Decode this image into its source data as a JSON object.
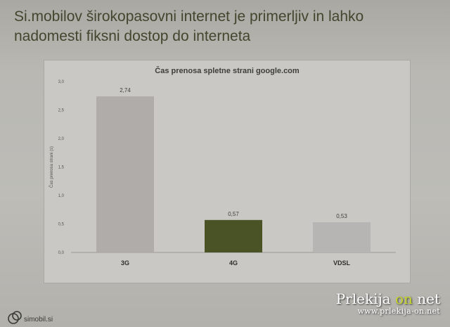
{
  "slide": {
    "title_line1": "Si.mobilov širokopasovni internet je primerljiv in lahko",
    "title_line2": "nadomesti fiksni dostop do interneta"
  },
  "chart_data": {
    "type": "bar",
    "title": "Čas prenosa spletne strani google.com",
    "ylabel": "Čas prenosa strani (s)",
    "xlabel": "",
    "categories": [
      "3G",
      "4G",
      "VDSL"
    ],
    "values": [
      2.74,
      0.57,
      0.53
    ],
    "value_labels": [
      "2,74",
      "0,57",
      "0,53"
    ],
    "bar_colors": [
      "#b0acaa",
      "#4a5325",
      "#b7b5b3"
    ],
    "ylim": [
      0,
      3
    ],
    "yticks": [
      0,
      0.5,
      1,
      1.5,
      2,
      2.5,
      3
    ],
    "ytick_labels": [
      "0,0",
      "0,5",
      "1,0",
      "1,5",
      "2,0",
      "2,5",
      "3,0"
    ],
    "grid": false,
    "legend": "none"
  },
  "footer": {
    "site": "simobil.si",
    "logo_icon": "simobil-logo-icon"
  },
  "watermark": {
    "brand_a": "Prlekija",
    "brand_on": "on",
    "brand_b": "net",
    "url": "www.prlekija-on.net"
  }
}
